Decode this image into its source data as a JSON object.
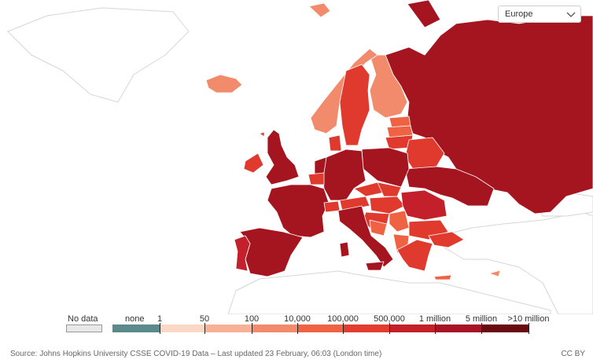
{
  "region_selector": {
    "selected": "Europe"
  },
  "legend": {
    "no_data_label": "No data",
    "no_data_color": "#e8e8e8",
    "bins": [
      {
        "label": "none",
        "color": "#5b8a8c"
      },
      {
        "label": "1",
        "color": "#fbd7c6"
      },
      {
        "label": "50",
        "color": "#f6b197"
      },
      {
        "label": "100",
        "color": "#f28b6b"
      },
      {
        "label": "10,000",
        "color": "#ef6344"
      },
      {
        "label": "100,000",
        "color": "#e23d2f"
      },
      {
        "label": "500,000",
        "color": "#c3202a"
      },
      {
        "label": "1 million",
        "color": "#a81424"
      },
      {
        "label": "5 million",
        "color": "#7f0b14"
      },
      {
        "label": ">10 million",
        "color": ""
      }
    ]
  },
  "footer": {
    "source": "Source: Johns Hopkins University CSSE COVID-19 Data – Last updated 23 February, 06:03 (London time)",
    "license": "CC BY"
  },
  "colors": {
    "dark": "#a4151f",
    "medium_dark": "#c4202b",
    "medium": "#e0392e",
    "light": "#ef6344",
    "lighter": "#f28b6b"
  }
}
